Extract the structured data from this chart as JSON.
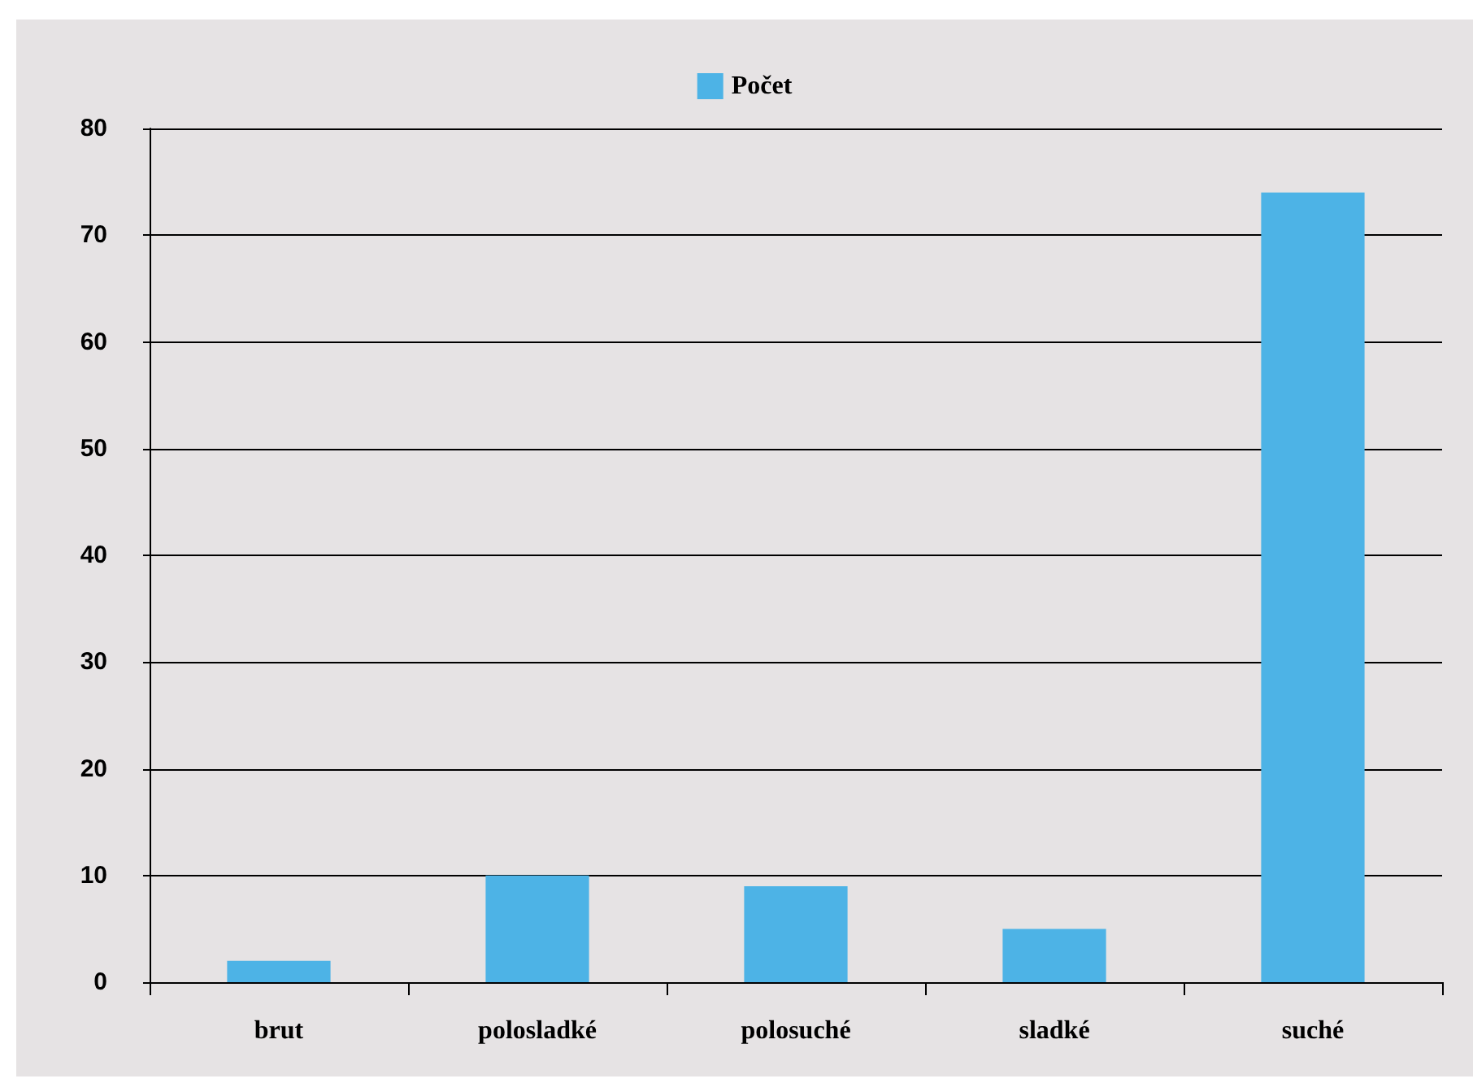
{
  "chart_data": {
    "type": "bar",
    "categories": [
      "brut",
      "polosladké",
      "polosuché",
      "sladké",
      "suché"
    ],
    "series": [
      {
        "name": "Počet",
        "color": "#4db3e6",
        "values": [
          2,
          10,
          9,
          5,
          74
        ]
      }
    ],
    "ylim": [
      0,
      80
    ],
    "yticks": [
      0,
      10,
      20,
      30,
      40,
      50,
      60,
      70,
      80
    ],
    "grid": "y",
    "legend": "top"
  }
}
